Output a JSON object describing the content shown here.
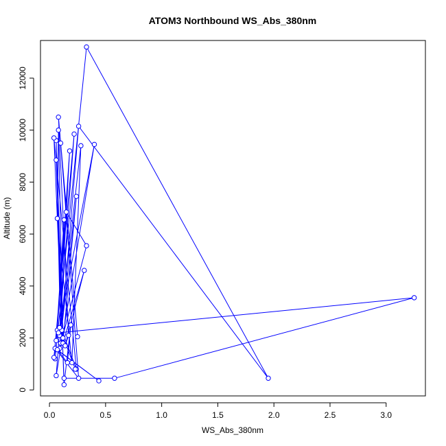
{
  "chart_data": {
    "type": "line",
    "title": "ATOM3 Northbound WS_Abs_380nm",
    "xlabel": "WS_Abs_380nm",
    "ylabel": "Altitude (m)",
    "xlim": [
      -0.08,
      3.35
    ],
    "ylim": [
      -230,
      13450
    ],
    "x_ticks": [
      0.0,
      0.5,
      1.0,
      1.5,
      2.0,
      2.5,
      3.0
    ],
    "x_tick_labels": [
      "0.0",
      "0.5",
      "1.0",
      "1.5",
      "2.0",
      "2.5",
      "3.0"
    ],
    "y_ticks": [
      0,
      2000,
      4000,
      6000,
      8000,
      10000,
      12000
    ],
    "y_tick_labels": [
      "0",
      "2000",
      "4000",
      "6000",
      "8000",
      "10000",
      "12000"
    ],
    "series_color": "#0000ff",
    "markers": "open-circle",
    "grid": false,
    "series": [
      {
        "x": [
          0.05,
          0.33,
          1.95,
          0.26,
          0.1,
          0.06,
          0.12,
          0.08,
          0.07,
          0.2,
          0.28,
          0.09,
          0.18,
          0.07,
          0.13,
          0.06,
          0.15,
          0.33,
          0.09,
          0.24,
          0.12,
          0.31,
          0.14,
          0.17,
          0.08,
          0.25,
          0.1,
          0.26,
          0.05,
          0.44,
          0.07,
          0.16,
          0.19,
          0.13,
          0.06,
          0.11,
          0.24,
          0.04,
          0.13,
          0.58,
          3.25,
          0.08,
          0.4,
          0.06,
          0.22,
          0.04,
          0.09,
          0.23
        ],
        "y": [
          1200,
          13200,
          450,
          10150,
          1800,
          9600,
          2000,
          10000,
          6600,
          1050,
          9400,
          2100,
          9200,
          2300,
          6550,
          1900,
          6850,
          5550,
          1600,
          7450,
          1800,
          4600,
          1700,
          2100,
          10500,
          2050,
          9500,
          450,
          1600,
          350,
          1550,
          1050,
          2500,
          200,
          8850,
          2300,
          800,
          9700,
          450,
          450,
          3550,
          2200,
          9450,
          550,
          9850,
          1250,
          2400,
          800
        ]
      }
    ]
  }
}
